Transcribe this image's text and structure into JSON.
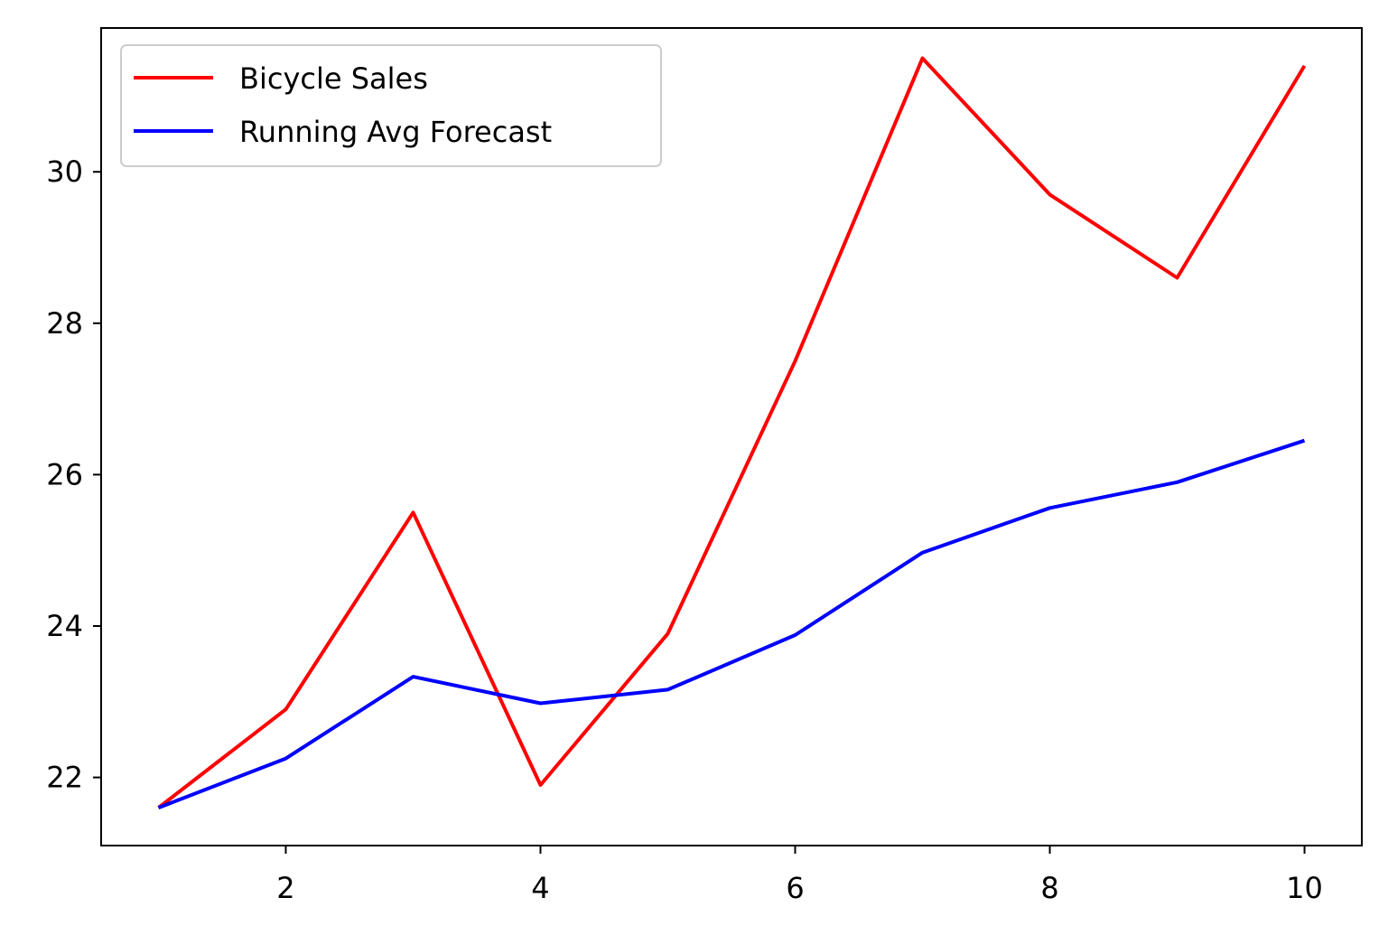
{
  "chart_data": {
    "type": "line",
    "x": [
      1,
      2,
      3,
      4,
      5,
      6,
      7,
      8,
      9,
      10
    ],
    "series": [
      {
        "name": "Bicycle Sales",
        "color": "#ff0000",
        "values": [
          21.6,
          22.9,
          25.5,
          21.9,
          23.9,
          27.5,
          31.5,
          29.7,
          28.6,
          31.4
        ]
      },
      {
        "name": "Running Avg Forecast",
        "color": "#0000ff",
        "values": [
          21.6,
          22.25,
          23.33,
          22.98,
          23.16,
          23.88,
          24.97,
          25.56,
          25.9,
          26.45
        ]
      }
    ],
    "xlim": [
      0.55,
      10.45
    ],
    "ylim": [
      21.1,
      31.9
    ],
    "xticks": [
      2,
      4,
      6,
      8,
      10
    ],
    "yticks": [
      22,
      24,
      26,
      28,
      30
    ],
    "xlabel": "",
    "ylabel": "",
    "title": "",
    "grid": false,
    "legend": "upper-left"
  }
}
